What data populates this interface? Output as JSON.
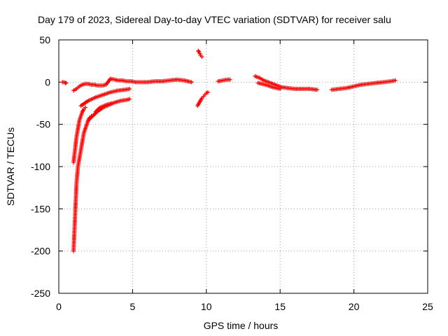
{
  "chart_data": {
    "type": "scatter",
    "title": "Day 179 of 2023, Sidereal Day-to-day VTEC variation (SDTVAR) for receiver salu",
    "xlabel": "GPS time / hours",
    "ylabel": "SDTVAR / TECUs",
    "xlim": [
      0,
      25
    ],
    "ylim": [
      -250,
      50
    ],
    "xticks": [
      0,
      5,
      10,
      15,
      20,
      25
    ],
    "yticks": [
      -250,
      -200,
      -150,
      -100,
      -50,
      0,
      50
    ],
    "grid": true,
    "marker": "plus",
    "color": "#ff0000",
    "series": [
      {
        "name": "s1",
        "x": [
          0.25,
          0.35,
          0.45,
          0.5
        ],
        "y": [
          0,
          0,
          -1,
          -1
        ]
      },
      {
        "name": "s2",
        "x": [
          1.0,
          1.05,
          1.1,
          1.15,
          1.2,
          1.3,
          1.4,
          1.5,
          1.6,
          1.7,
          1.8,
          1.9,
          2.0,
          2.1,
          2.2
        ],
        "y": [
          -200,
          -180,
          -160,
          -140,
          -120,
          -100,
          -90,
          -80,
          -70,
          -60,
          -55,
          -50,
          -45,
          -42,
          -40
        ]
      },
      {
        "name": "s3",
        "x": [
          1.0,
          1.1,
          1.2,
          1.3,
          1.4,
          1.5,
          1.6,
          1.7,
          1.8
        ],
        "y": [
          -95,
          -80,
          -65,
          -55,
          -45,
          -40,
          -35,
          -32,
          -30
        ]
      },
      {
        "name": "s4",
        "x": [
          1.0,
          1.2,
          1.4,
          1.6,
          1.8,
          2.0,
          2.2,
          2.4,
          2.6,
          2.8,
          3.0,
          3.2,
          3.5,
          3.8,
          4.0,
          4.3,
          4.6,
          4.9,
          5.2,
          5.5,
          6.0,
          6.5,
          7.0,
          7.5,
          8.0,
          8.5,
          9.0
        ],
        "y": [
          -10,
          -8,
          -5,
          -3,
          -2,
          -2,
          -3,
          -3,
          -4,
          -4,
          -4,
          -3,
          4,
          3,
          2,
          2,
          1,
          1,
          0,
          0,
          0,
          1,
          1,
          2,
          3,
          2,
          0
        ]
      },
      {
        "name": "s5",
        "x": [
          1.5,
          2.0,
          2.5,
          3.0,
          3.5,
          4.0,
          4.5,
          4.8
        ],
        "y": [
          -28,
          -22,
          -18,
          -15,
          -12,
          -10,
          -9,
          -8
        ]
      },
      {
        "name": "s6",
        "x": [
          2.0,
          2.3,
          2.6,
          3.0,
          3.4,
          3.8,
          4.2,
          4.6,
          4.8
        ],
        "y": [
          -45,
          -40,
          -35,
          -30,
          -27,
          -24,
          -22,
          -21,
          -20
        ]
      },
      {
        "name": "s7",
        "x": [
          2.5,
          2.8,
          3.2,
          3.6
        ],
        "y": [
          -35,
          -30,
          -27,
          -25
        ]
      },
      {
        "name": "s8",
        "x": [
          9.45,
          9.5,
          9.55,
          9.6,
          9.7
        ],
        "y": [
          37,
          36,
          34,
          32,
          30
        ]
      },
      {
        "name": "s9",
        "x": [
          9.4,
          9.5,
          9.6,
          9.7,
          9.8,
          9.9,
          10.0,
          10.1
        ],
        "y": [
          -28,
          -25,
          -22,
          -19,
          -17,
          -15,
          -13,
          -12
        ]
      },
      {
        "name": "s10",
        "x": [
          10.8,
          11.1,
          11.4,
          11.6
        ],
        "y": [
          1,
          2,
          3,
          3
        ]
      },
      {
        "name": "s11",
        "x": [
          13.3,
          13.6,
          13.9,
          14.2,
          14.5,
          14.8,
          15.1,
          15.5,
          16.0,
          16.5,
          17.0,
          17.5
        ],
        "y": [
          7,
          5,
          2,
          0,
          -2,
          -4,
          -6,
          -7,
          -8,
          -8,
          -8,
          -9
        ]
      },
      {
        "name": "s12",
        "x": [
          13.5,
          14.0,
          14.5,
          15.0
        ],
        "y": [
          -1,
          -3,
          -6,
          -8
        ]
      },
      {
        "name": "s13",
        "x": [
          18.5,
          19.0,
          19.5,
          20.0,
          20.5,
          21.0,
          21.5,
          22.0,
          22.5,
          22.8
        ],
        "y": [
          -9,
          -8,
          -7,
          -5,
          -3,
          -2,
          -1,
          0,
          1,
          2
        ]
      }
    ]
  }
}
